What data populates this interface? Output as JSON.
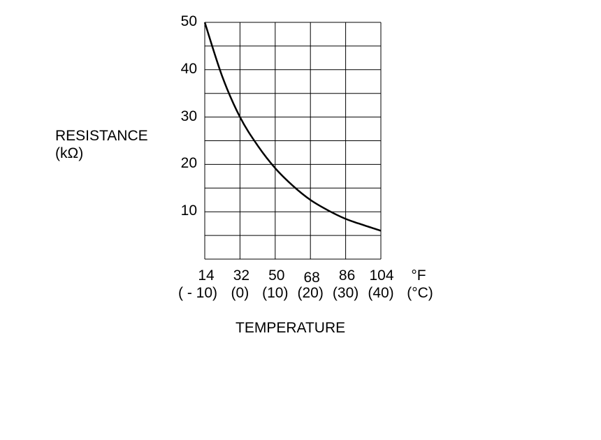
{
  "chart_data": {
    "type": "line",
    "title": "",
    "xlabel": "TEMPERATURE",
    "ylabel": "RESISTANCE",
    "ylabel_unit": "(kΩ)",
    "x_unit_f": "°F",
    "x_unit_c": "(°C)",
    "x_ticks_f": [
      "14",
      "32",
      "50",
      "68",
      "86",
      "104"
    ],
    "x_ticks_c": [
      "( - 10)",
      "(0)",
      "(10)",
      "(20)",
      "(30)",
      "(40)"
    ],
    "x_values_c": [
      -10,
      0,
      10,
      20,
      30,
      40
    ],
    "y_ticks": [
      "10",
      "20",
      "30",
      "40",
      "50"
    ],
    "xlim": [
      -10,
      40
    ],
    "ylim": [
      0,
      50
    ],
    "grid": true,
    "series": [
      {
        "x": [
          -10,
          -5,
          0,
          5,
          10,
          15,
          20,
          25,
          30,
          35,
          40
        ],
        "y": [
          50,
          38.5,
          30,
          24,
          19.2,
          15.5,
          12.5,
          10.3,
          8.5,
          7.2,
          6
        ]
      }
    ],
    "colors": {
      "line": "#000000",
      "grid": "#000000"
    }
  }
}
